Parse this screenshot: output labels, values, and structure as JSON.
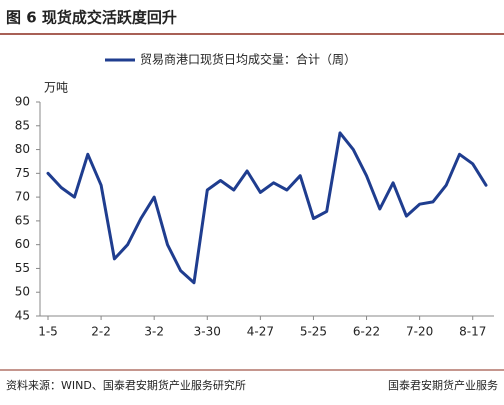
{
  "chart_data": {
    "type": "line",
    "title": "图 6  现货成交活跃度回升",
    "y_label": "万吨",
    "source": "资料来源：WIND、国泰君安期货产业服务研究所",
    "watermark": "国泰君安期货产业服务",
    "categories": [
      "1-5",
      null,
      null,
      null,
      "2-2",
      null,
      null,
      null,
      "3-2",
      null,
      null,
      null,
      "3-30",
      null,
      null,
      null,
      "4-27",
      null,
      null,
      null,
      "5-25",
      null,
      null,
      null,
      "6-22",
      null,
      null,
      null,
      "7-20",
      null,
      null,
      null,
      "8-17",
      null
    ],
    "series": [
      {
        "name": "贸易商港口现货日均成交量：合计（周）",
        "color": "#1f3d8f",
        "values": [
          75,
          72,
          70,
          79,
          72.5,
          57,
          60,
          65.5,
          70,
          60,
          54.5,
          52,
          71.5,
          73.5,
          71.5,
          75.5,
          71,
          73,
          71.5,
          74.5,
          65.5,
          67,
          83.5,
          80,
          74.5,
          67.5,
          73,
          66,
          68.5,
          69,
          72.5,
          79,
          77,
          72.5
        ]
      }
    ],
    "ylim": [
      45,
      90
    ],
    "yticks": [
      45,
      50,
      55,
      60,
      65,
      70,
      75,
      80,
      85,
      90
    ],
    "grid": false
  }
}
